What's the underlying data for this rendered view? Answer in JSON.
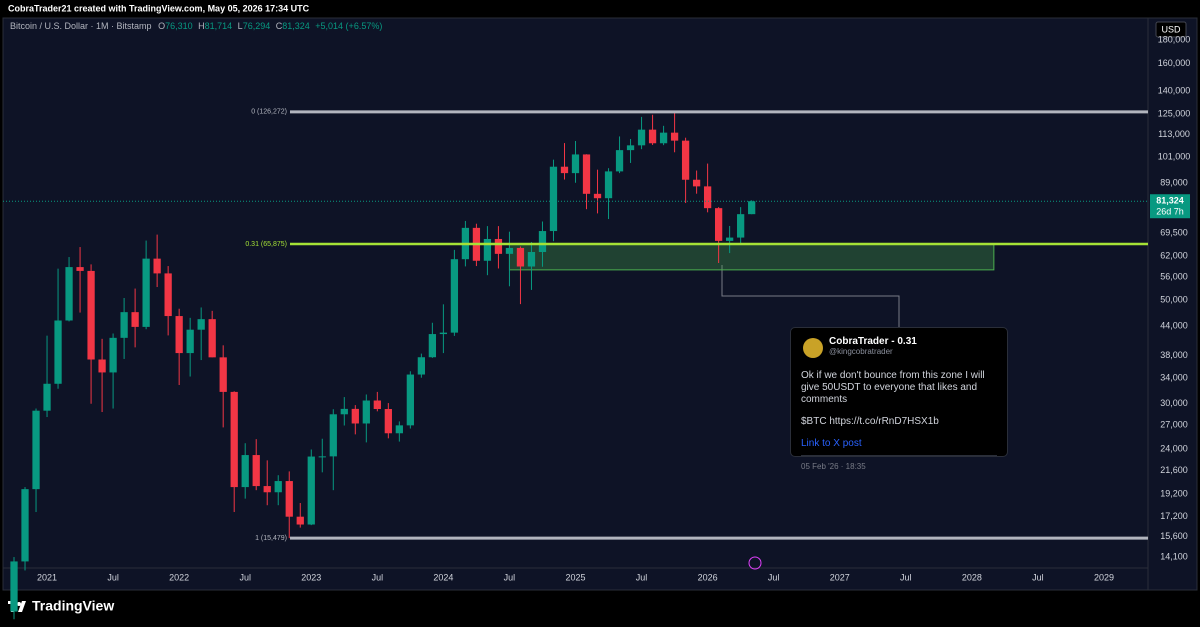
{
  "header": {
    "credit": "CobraTrader21 created with TradingView.com, May 05, 2026 17:34 UTC"
  },
  "chart_data": {
    "type": "candlestick",
    "symbol": "Bitcoin / U.S. Dollar · 1M · Bitstamp",
    "ohlc_legend": [
      {
        "key": "O",
        "text": "76,310"
      },
      {
        "key": "H",
        "text": "81,714"
      },
      {
        "key": "L",
        "text": "76,294"
      },
      {
        "key": "C",
        "text": "81,324"
      }
    ],
    "change": "+5,014 (+6.57%)",
    "currency": "USD",
    "up_color": "#089981",
    "down_color": "#f23645",
    "log_scale": true,
    "grid": false,
    "x": [
      "2020-10",
      "2020-11",
      "2020-12",
      "2021-01",
      "2021-02",
      "2021-03",
      "2021-04",
      "2021-05",
      "2021-06",
      "2021-07",
      "2021-08",
      "2021-09",
      "2021-10",
      "2021-11",
      "2021-12",
      "2022-01",
      "2022-02",
      "2022-03",
      "2022-04",
      "2022-05",
      "2022-06",
      "2022-07",
      "2022-08",
      "2022-09",
      "2022-10",
      "2022-11",
      "2022-12",
      "2023-01",
      "2023-02",
      "2023-03",
      "2023-04",
      "2023-05",
      "2023-06",
      "2023-07",
      "2023-08",
      "2023-09",
      "2023-10",
      "2023-11",
      "2023-12",
      "2024-01",
      "2024-02",
      "2024-03",
      "2024-04",
      "2024-05",
      "2024-06",
      "2024-07",
      "2024-08",
      "2024-09",
      "2024-10",
      "2024-11",
      "2024-12",
      "2025-01",
      "2025-02",
      "2025-03",
      "2025-04",
      "2025-05",
      "2025-06",
      "2025-07",
      "2025-08",
      "2025-09",
      "2025-10",
      "2025-11",
      "2025-12",
      "2026-01",
      "2026-02",
      "2026-03",
      "2026-04",
      "2026-05"
    ],
    "open": [
      10780,
      13800,
      19700,
      28990,
      33100,
      45200,
      58800,
      57700,
      37300,
      35000,
      41500,
      47100,
      43800,
      61300,
      57000,
      46200,
      38500,
      43200,
      45500,
      37700,
      31800,
      19900,
      23300,
      20000,
      19400,
      20500,
      17200,
      16550,
      23130,
      23150,
      28480,
      29250,
      27220,
      30480,
      29230,
      25940,
      26970,
      34640,
      37720,
      42280,
      42580,
      61130,
      71330,
      60660,
      67530,
      62760,
      64620,
      58970,
      63330,
      70220,
      96400,
      93400,
      102400,
      84350,
      82550,
      94200,
      104600,
      107100,
      115700,
      108200,
      114000,
      109600,
      90400,
      87500,
      78600,
      66900,
      68000,
      76310
    ],
    "high": [
      14100,
      19900,
      29300,
      41950,
      58350,
      61780,
      64900,
      59600,
      41300,
      42400,
      50500,
      52900,
      67000,
      69000,
      59100,
      47900,
      45800,
      48200,
      47400,
      40000,
      31900,
      24700,
      25200,
      22700,
      21100,
      21500,
      18400,
      23950,
      25250,
      29200,
      31000,
      29800,
      31400,
      31800,
      30100,
      27500,
      35200,
      38400,
      44700,
      48950,
      64000,
      73800,
      72800,
      71950,
      71950,
      70000,
      65100,
      66500,
      73600,
      99800,
      108300,
      109400,
      102500,
      95000,
      95700,
      111900,
      110500,
      123200,
      124500,
      117900,
      126272,
      111200,
      94600,
      97900,
      79000,
      72000,
      79000,
      81714
    ],
    "low": [
      10380,
      13200,
      17600,
      28100,
      32300,
      45000,
      47000,
      30000,
      28800,
      29300,
      37400,
      39600,
      43300,
      53300,
      42000,
      32900,
      34300,
      37200,
      37700,
      26700,
      17600,
      18800,
      19600,
      18200,
      18200,
      15480,
      16300,
      16500,
      21400,
      19600,
      26950,
      25800,
      24800,
      28900,
      25300,
      24900,
      26550,
      34100,
      37600,
      38500,
      41900,
      59000,
      59100,
      56500,
      58400,
      53500,
      49000,
      52550,
      58900,
      66800,
      90500,
      89100,
      78200,
      76600,
      74500,
      93400,
      98200,
      105100,
      107300,
      107200,
      103500,
      80600,
      84400,
      77000,
      60000,
      63000,
      66000,
      76294
    ],
    "close": [
      13800,
      19700,
      28990,
      33100,
      45200,
      58800,
      57700,
      37300,
      35000,
      41500,
      47100,
      43800,
      61300,
      57000,
      46200,
      38500,
      43200,
      45500,
      37700,
      31800,
      19900,
      23300,
      20000,
      19400,
      20500,
      17200,
      16550,
      23130,
      23150,
      28480,
      29250,
      27220,
      30480,
      29230,
      25940,
      26970,
      34640,
      37720,
      42280,
      42580,
      61130,
      71330,
      60660,
      67530,
      62760,
      64620,
      58970,
      63330,
      70220,
      96400,
      93400,
      102400,
      84350,
      82550,
      94200,
      104600,
      107100,
      115700,
      108200,
      114000,
      109600,
      90400,
      87500,
      78600,
      66900,
      68000,
      76310,
      81324
    ],
    "xlim": [
      "2020-09",
      "2029-05"
    ],
    "xticks": [
      {
        "value": "2021-01",
        "label": "2021"
      },
      {
        "value": "2021-07",
        "label": "Jul"
      },
      {
        "value": "2022-01",
        "label": "2022"
      },
      {
        "value": "2022-07",
        "label": "Jul"
      },
      {
        "value": "2023-01",
        "label": "2023"
      },
      {
        "value": "2023-07",
        "label": "Jul"
      },
      {
        "value": "2024-01",
        "label": "2024"
      },
      {
        "value": "2024-07",
        "label": "Jul"
      },
      {
        "value": "2025-01",
        "label": "2025"
      },
      {
        "value": "2025-07",
        "label": "Jul"
      },
      {
        "value": "2026-01",
        "label": "2026"
      },
      {
        "value": "2026-07",
        "label": "Jul"
      },
      {
        "value": "2027-01",
        "label": "2027"
      },
      {
        "value": "2027-07",
        "label": "Jul"
      },
      {
        "value": "2028-01",
        "label": "2028"
      },
      {
        "value": "2028-07",
        "label": "Jul"
      },
      {
        "value": "2029-01",
        "label": "2029"
      }
    ],
    "ylim": [
      13360,
      200500
    ],
    "yticks": [
      {
        "value": 14100,
        "label": "14,100"
      },
      {
        "value": 15600,
        "label": "15,600"
      },
      {
        "value": 17200,
        "label": "17,200"
      },
      {
        "value": 19200,
        "label": "19,200"
      },
      {
        "value": 21600,
        "label": "21,600"
      },
      {
        "value": 24000,
        "label": "24,000"
      },
      {
        "value": 27000,
        "label": "27,000"
      },
      {
        "value": 30000,
        "label": "30,000"
      },
      {
        "value": 34000,
        "label": "34,000"
      },
      {
        "value": 38000,
        "label": "38,000"
      },
      {
        "value": 44000,
        "label": "44,000"
      },
      {
        "value": 50000,
        "label": "50,000"
      },
      {
        "value": 56000,
        "label": "56,000"
      },
      {
        "value": 62000,
        "label": "62,000"
      },
      {
        "value": 69500,
        "label": "69,500"
      },
      {
        "value": 89000,
        "label": "89,000"
      },
      {
        "value": 101000,
        "label": "101,000"
      },
      {
        "value": 113000,
        "label": "113,000"
      },
      {
        "value": 125000,
        "label": "125,000"
      },
      {
        "value": 140000,
        "label": "140,000"
      },
      {
        "value": 160000,
        "label": "160,000"
      },
      {
        "value": 180000,
        "label": "180,000"
      }
    ],
    "fib_levels": [
      {
        "ratio": 0,
        "price": 126272,
        "label": "0 (126,272)",
        "color": "#b2b5be"
      },
      {
        "ratio": 0.31,
        "price": 65875,
        "label": "0.31 (65,875)",
        "color": "#a5e236"
      },
      {
        "ratio": 1,
        "price": 15479,
        "label": "1 (15,479)",
        "color": "#b2b5be"
      }
    ],
    "zone": {
      "x": [
        "2024-07",
        "2028-03"
      ],
      "y": [
        58000,
        65875
      ],
      "color": "#4caf50"
    },
    "last_price": {
      "value": 81324,
      "label": "81,324",
      "countdown": "26d 7h"
    }
  },
  "note": {
    "author": "CobraTrader - 0.31",
    "handle": "@kingcobratrader",
    "text": "Ok if we don't bounce from this zone I will give 50USDT to everyone that likes and comments",
    "ticker_line": "$BTC https://t.co/rRnD7HSX1b",
    "link": "Link to X post",
    "date": "05 Feb '26 · 18:35"
  },
  "footer": {
    "brand": "TradingView"
  }
}
